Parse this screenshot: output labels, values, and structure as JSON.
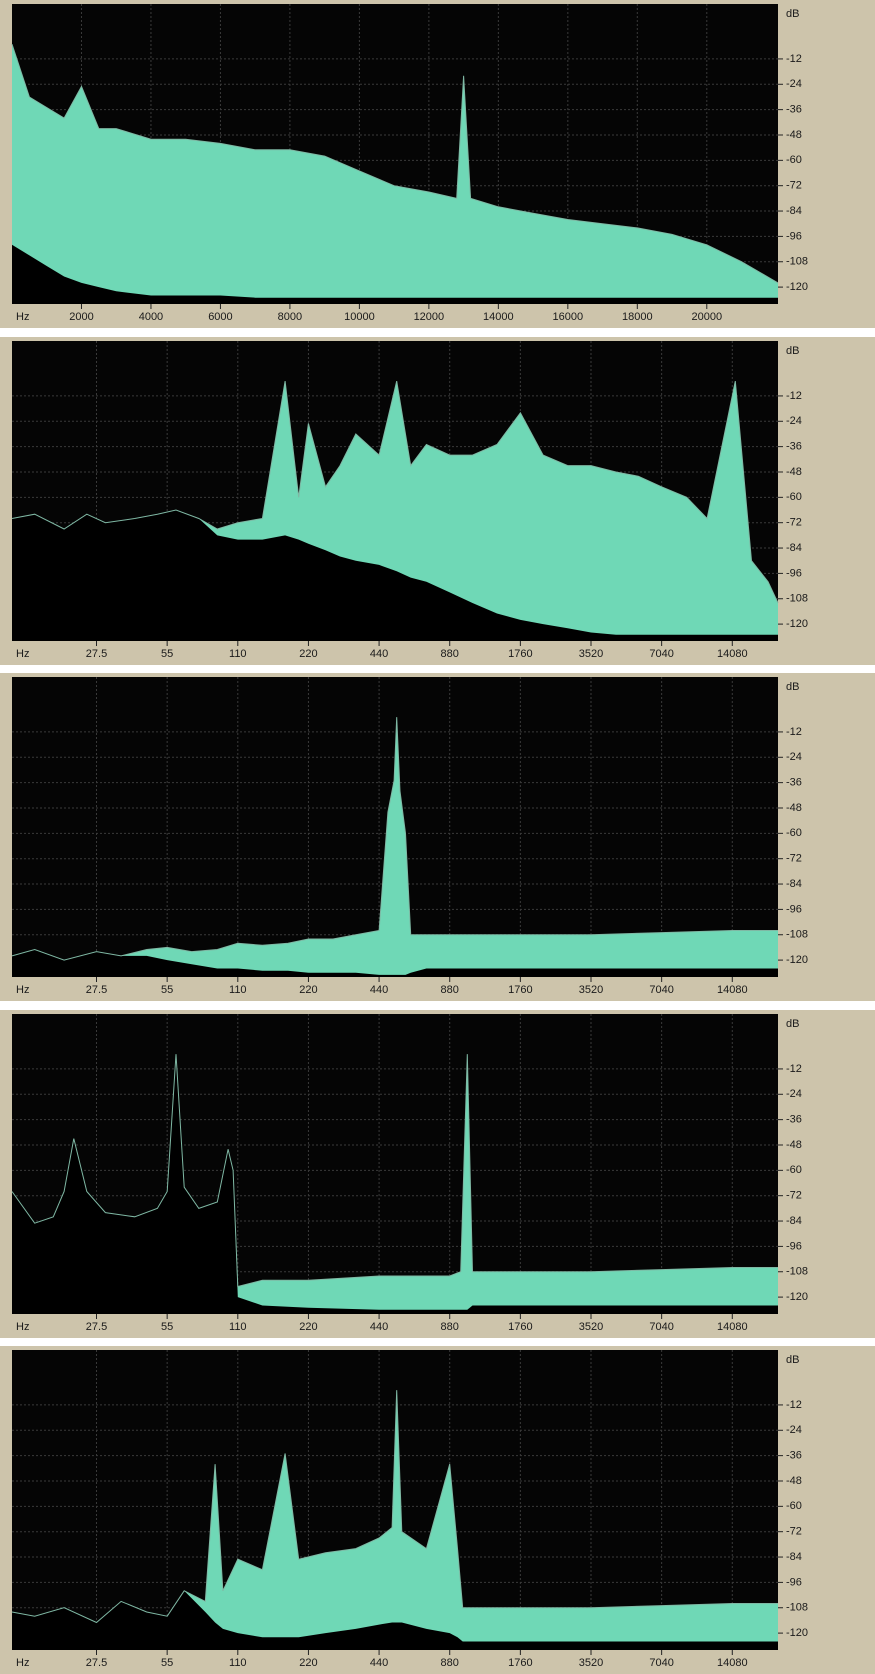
{
  "chart_data": [
    {
      "type": "area",
      "xscale": "linear",
      "x_label": "Hz",
      "y_label": "dB",
      "grid": true,
      "xlim": [
        0,
        22050
      ],
      "xticks": [
        2000,
        4000,
        6000,
        8000,
        10000,
        12000,
        14000,
        16000,
        18000,
        20000
      ],
      "ylim": [
        -128,
        14
      ],
      "yticks": [
        -12,
        -24,
        -36,
        -48,
        -60,
        -72,
        -84,
        -96,
        -108,
        -120
      ],
      "x": [
        0,
        500,
        1000,
        1500,
        2000,
        2500,
        3000,
        4000,
        5000,
        6000,
        7000,
        8000,
        9000,
        10000,
        11000,
        12000,
        12800,
        13000,
        13200,
        14000,
        15000,
        16000,
        17000,
        18000,
        19000,
        20000,
        21000,
        22050
      ],
      "series": [
        {
          "color": "#6fd8b6",
          "values": [
            -5,
            -30,
            -35,
            -40,
            -25,
            -45,
            -45,
            -50,
            -50,
            -52,
            -55,
            -55,
            -58,
            -65,
            -72,
            -75,
            -78,
            -20,
            -78,
            -82,
            -85,
            -88,
            -90,
            -92,
            -95,
            -100,
            -108,
            -118
          ]
        },
        {
          "color": "#000000",
          "values": [
            -100,
            -105,
            -110,
            -115,
            -118,
            -120,
            -122,
            -124,
            -124,
            -124,
            -125,
            -125,
            -125,
            -125,
            -125,
            -125,
            -125,
            -125,
            -125,
            -125,
            -125,
            -125,
            -125,
            -125,
            -125,
            -125,
            -125,
            -125
          ]
        }
      ]
    },
    {
      "type": "area",
      "xscale": "log",
      "x_label": "Hz",
      "y_label": "dB",
      "grid": true,
      "xlim": [
        12,
        22050
      ],
      "xticks": [
        27.5,
        55,
        110,
        220,
        440,
        880,
        1760,
        3520,
        7040,
        14080
      ],
      "ylim": [
        -128,
        14
      ],
      "yticks": [
        -12,
        -24,
        -36,
        -48,
        -60,
        -72,
        -84,
        -96,
        -108,
        -120
      ],
      "x": [
        12,
        15,
        20,
        25,
        30,
        40,
        50,
        60,
        75,
        90,
        110,
        140,
        175,
        200,
        220,
        260,
        300,
        350,
        440,
        523,
        600,
        700,
        880,
        1100,
        1400,
        1760,
        2200,
        2800,
        3520,
        4500,
        5600,
        7040,
        9000,
        11000,
        14500,
        17000,
        20000,
        22050
      ],
      "series": [
        {
          "color": "#6fd8b6",
          "values": [
            -70,
            -68,
            -75,
            -68,
            -72,
            -70,
            -68,
            -66,
            -70,
            -75,
            -72,
            -70,
            -5,
            -60,
            -25,
            -55,
            -45,
            -30,
            -40,
            -5,
            -45,
            -35,
            -40,
            -40,
            -35,
            -20,
            -40,
            -45,
            -45,
            -48,
            -50,
            -55,
            -60,
            -70,
            -5,
            -90,
            -100,
            -110
          ]
        },
        {
          "color": "#000000",
          "values": [
            -70,
            -68,
            -75,
            -68,
            -72,
            -70,
            -68,
            -66,
            -70,
            -78,
            -80,
            -80,
            -78,
            -80,
            -82,
            -85,
            -88,
            -90,
            -92,
            -95,
            -98,
            -100,
            -105,
            -110,
            -115,
            -118,
            -120,
            -122,
            -124,
            -125,
            -125,
            -125,
            -125,
            -125,
            -125,
            -125,
            -125,
            -125
          ]
        }
      ]
    },
    {
      "type": "area",
      "xscale": "log",
      "x_label": "Hz",
      "y_label": "dB",
      "grid": true,
      "xlim": [
        12,
        22050
      ],
      "xticks": [
        27.5,
        55,
        110,
        220,
        440,
        880,
        1760,
        3520,
        7040,
        14080
      ],
      "ylim": [
        -128,
        14
      ],
      "yticks": [
        -12,
        -24,
        -36,
        -48,
        -60,
        -72,
        -84,
        -96,
        -108,
        -120
      ],
      "x": [
        12,
        15,
        20,
        27.5,
        35,
        45,
        55,
        70,
        90,
        110,
        140,
        180,
        220,
        280,
        350,
        440,
        480,
        510,
        523,
        540,
        570,
        600,
        700,
        880,
        1100,
        1760,
        3520,
        7040,
        14080,
        22050
      ],
      "series": [
        {
          "color": "#6fd8b6",
          "values": [
            -118,
            -115,
            -120,
            -116,
            -118,
            -115,
            -114,
            -116,
            -115,
            -112,
            -113,
            -112,
            -110,
            -110,
            -108,
            -106,
            -50,
            -35,
            -5,
            -40,
            -60,
            -108,
            -108,
            -108,
            -108,
            -108,
            -108,
            -107,
            -106,
            -106
          ]
        },
        {
          "color": "#000000",
          "values": [
            -118,
            -115,
            -120,
            -116,
            -118,
            -118,
            -120,
            -122,
            -124,
            -124,
            -125,
            -125,
            -126,
            -126,
            -126,
            -127,
            -127,
            -127,
            -127,
            -127,
            -127,
            -126,
            -124,
            -124,
            -124,
            -124,
            -124,
            -124,
            -124,
            -124
          ]
        }
      ]
    },
    {
      "type": "area",
      "xscale": "log",
      "x_label": "Hz",
      "y_label": "dB",
      "grid": true,
      "xlim": [
        12,
        22050
      ],
      "xticks": [
        27.5,
        55,
        110,
        220,
        440,
        880,
        1760,
        3520,
        7040,
        14080
      ],
      "ylim": [
        -128,
        14
      ],
      "yticks": [
        -12,
        -24,
        -36,
        -48,
        -60,
        -72,
        -84,
        -96,
        -108,
        -120
      ],
      "x": [
        12,
        15,
        18,
        20,
        22,
        25,
        30,
        40,
        50,
        55,
        60,
        65,
        75,
        90,
        100,
        105,
        110,
        140,
        220,
        440,
        880,
        980,
        1046,
        1100,
        1200,
        1760,
        3520,
        7040,
        14080,
        22050
      ],
      "series": [
        {
          "color": "#6fd8b6",
          "values": [
            -70,
            -85,
            -82,
            -70,
            -45,
            -70,
            -80,
            -82,
            -78,
            -70,
            -5,
            -68,
            -78,
            -75,
            -50,
            -60,
            -115,
            -112,
            -112,
            -110,
            -110,
            -108,
            -5,
            -108,
            -108,
            -108,
            -108,
            -107,
            -106,
            -106
          ]
        },
        {
          "color": "#000000",
          "values": [
            -70,
            -85,
            -82,
            -70,
            -45,
            -70,
            -80,
            -82,
            -78,
            -70,
            -5,
            -68,
            -78,
            -75,
            -50,
            -60,
            -120,
            -124,
            -125,
            -126,
            -126,
            -126,
            -126,
            -124,
            -124,
            -124,
            -124,
            -124,
            -124,
            -124
          ]
        }
      ]
    },
    {
      "type": "area",
      "xscale": "log",
      "x_label": "Hz",
      "y_label": "dB",
      "grid": true,
      "xlim": [
        12,
        22050
      ],
      "xticks": [
        27.5,
        55,
        110,
        220,
        440,
        880,
        1760,
        3520,
        7040,
        14080
      ],
      "ylim": [
        -128,
        14
      ],
      "yticks": [
        -12,
        -24,
        -36,
        -48,
        -60,
        -72,
        -84,
        -96,
        -108,
        -120
      ],
      "x": [
        12,
        15,
        20,
        27.5,
        35,
        45,
        55,
        65,
        80,
        88,
        95,
        110,
        140,
        175,
        200,
        260,
        350,
        440,
        500,
        523,
        550,
        700,
        880,
        950,
        1000,
        1200,
        1760,
        3520,
        7040,
        14080,
        22050
      ],
      "series": [
        {
          "color": "#6fd8b6",
          "values": [
            -110,
            -112,
            -108,
            -115,
            -105,
            -110,
            -112,
            -100,
            -105,
            -40,
            -100,
            -85,
            -90,
            -35,
            -85,
            -82,
            -80,
            -75,
            -70,
            -5,
            -72,
            -80,
            -40,
            -80,
            -108,
            -108,
            -108,
            -108,
            -107,
            -106,
            -106
          ]
        },
        {
          "color": "#000000",
          "values": [
            -110,
            -112,
            -108,
            -115,
            -105,
            -110,
            -112,
            -100,
            -110,
            -115,
            -118,
            -120,
            -122,
            -122,
            -122,
            -120,
            -118,
            -116,
            -115,
            -115,
            -115,
            -118,
            -120,
            -122,
            -124,
            -124,
            -124,
            -124,
            -124,
            -124,
            -124
          ]
        }
      ]
    }
  ]
}
